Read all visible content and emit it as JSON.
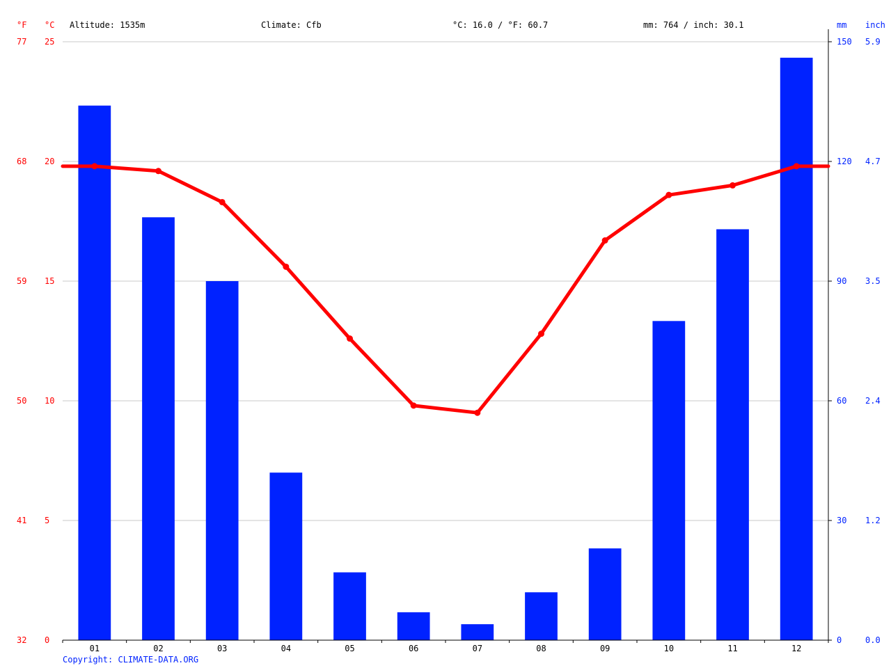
{
  "header": {
    "unit_f": "°F",
    "unit_c": "°C",
    "altitude": "Altitude: 1535m",
    "climate": "Climate: Cfb",
    "temperature": "°C: 16.0 / °F: 60.7",
    "precipitation": "mm: 764 / inch: 30.1",
    "unit_mm": "mm",
    "unit_inch": "inch"
  },
  "copyright": "Copyright: CLIMATE-DATA.ORG",
  "colors": {
    "temp": "#ff0000",
    "precip": "#0022ff",
    "grid": "#c8c8c8",
    "axis": "#000000",
    "text": "#000000"
  },
  "chart_data": {
    "type": "bar",
    "categories": [
      "01",
      "02",
      "03",
      "04",
      "05",
      "06",
      "07",
      "08",
      "09",
      "10",
      "11",
      "12"
    ],
    "series": [
      {
        "values": [
          134,
          106,
          90,
          42,
          17,
          7,
          4,
          12,
          23,
          80,
          103,
          146
        ]
      },
      {
        "values": [
          19.8,
          19.6,
          18.3,
          15.6,
          12.6,
          9.8,
          9.5,
          12.8,
          16.7,
          18.6,
          19.0,
          19.8
        ]
      }
    ],
    "left_axis_c": {
      "ylim": [
        0,
        25
      ],
      "ticks": [
        "0",
        "5",
        "10",
        "15",
        "20",
        "25"
      ]
    },
    "left_axis_f": {
      "ticks": [
        "32",
        "41",
        "50",
        "59",
        "68",
        "77"
      ]
    },
    "right_axis_mm": {
      "ylim": [
        0,
        150
      ],
      "ticks": [
        "0",
        "30",
        "60",
        "90",
        "120",
        "150"
      ]
    },
    "right_axis_inch": {
      "ticks": [
        "0.0",
        "1.2",
        "2.4",
        "3.5",
        "4.7",
        "5.9"
      ]
    },
    "grid": true
  }
}
